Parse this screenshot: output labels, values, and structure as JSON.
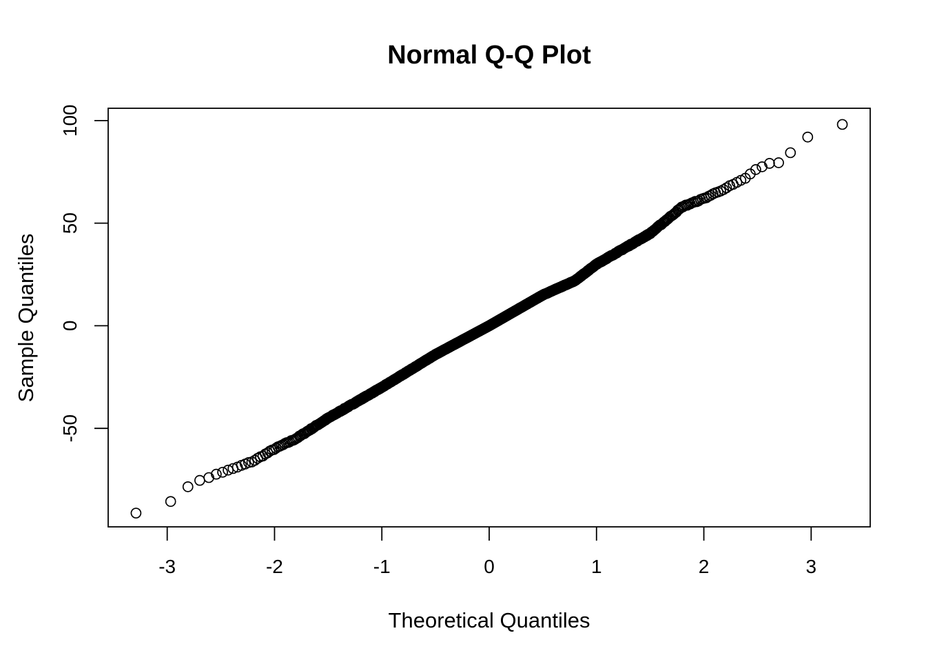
{
  "chart_data": {
    "type": "scatter",
    "title": "Normal Q-Q Plot",
    "xlabel": "Theoretical Quantiles",
    "ylabel": "Sample Quantiles",
    "xlim": [
      -3.55,
      3.55
    ],
    "ylim": [
      -98,
      106
    ],
    "x_ticks": [
      -3,
      -2,
      -1,
      0,
      1,
      2,
      3
    ],
    "y_ticks": [
      -50,
      0,
      50,
      100
    ],
    "x_tick_labels": [
      "-3",
      "-2",
      "-1",
      "0",
      "1",
      "2",
      "3"
    ],
    "y_tick_labels": [
      "-50",
      "0",
      "50",
      "100"
    ],
    "grid": false,
    "legend": "none",
    "n_points": 1000,
    "distribution_points": [
      {
        "x": -3.29,
        "y": -91
      },
      {
        "x": -2.97,
        "y": -86
      },
      {
        "x": -2.8,
        "y": -78
      },
      {
        "x": -2.69,
        "y": -75
      },
      {
        "x": -2.6,
        "y": -74
      },
      {
        "x": -2.53,
        "y": -72
      },
      {
        "x": -2.4,
        "y": -70
      },
      {
        "x": -2.2,
        "y": -66
      },
      {
        "x": -2.0,
        "y": -60
      },
      {
        "x": -1.8,
        "y": -55
      },
      {
        "x": -1.5,
        "y": -45
      },
      {
        "x": -1.0,
        "y": -30
      },
      {
        "x": -0.5,
        "y": -14
      },
      {
        "x": 0.0,
        "y": 0
      },
      {
        "x": 0.5,
        "y": 15
      },
      {
        "x": 0.8,
        "y": 22
      },
      {
        "x": 1.0,
        "y": 30
      },
      {
        "x": 1.5,
        "y": 45
      },
      {
        "x": 1.8,
        "y": 58
      },
      {
        "x": 2.0,
        "y": 62
      },
      {
        "x": 2.2,
        "y": 67
      },
      {
        "x": 2.4,
        "y": 72
      },
      {
        "x": 2.47,
        "y": 76
      },
      {
        "x": 2.53,
        "y": 77
      },
      {
        "x": 2.6,
        "y": 79
      },
      {
        "x": 2.69,
        "y": 79
      },
      {
        "x": 2.8,
        "y": 84
      },
      {
        "x": 2.97,
        "y": 92
      },
      {
        "x": 3.29,
        "y": 98
      }
    ]
  }
}
